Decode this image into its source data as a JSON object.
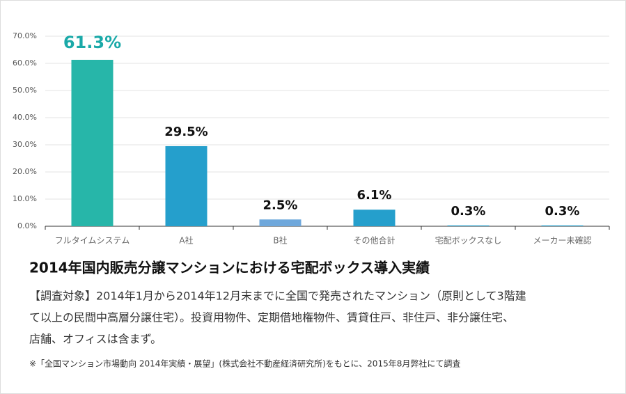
{
  "chart_data": {
    "type": "bar",
    "title": "2014年国内販売分譲マンションにおける宅配ボックス導入実績",
    "caption": [
      "【調査対象】2014年1月から2014年12月末までに全国で発売されたマンション（原則として3階建",
      "て以上の民間中高層分譲住宅）。投資用物件、定期借地権物件、賃貸住戸、非住戸、非分譲住宅、",
      "店舗、オフィスは含まず。"
    ],
    "source": "※「全国マンション市場動向 2014年実績・展望」(株式会社不動産経済研究所)をもとに、2015年8月弊社にて調査",
    "categories": [
      "フルタイムシステム",
      "A社",
      "B社",
      "その他合計",
      "宅配ボックスなし",
      "メーカー未確認"
    ],
    "values": [
      61.3,
      29.5,
      2.5,
      6.1,
      0.3,
      0.3
    ],
    "value_labels": [
      "61.3%",
      "29.5%",
      "2.5%",
      "6.1%",
      "0.3%",
      "0.3%"
    ],
    "colors": [
      "#27b6a9",
      "#259fcc",
      "#6fa8dc",
      "#259fcc",
      "#259fcc",
      "#259fcc"
    ],
    "value_label_colors": [
      "#1aa9a8",
      "#111111",
      "#111111",
      "#111111",
      "#111111",
      "#111111"
    ],
    "ylim": [
      0,
      70
    ],
    "yticks": [
      {
        "value": 0,
        "label": "0.0%"
      },
      {
        "value": 10,
        "label": "10.0%"
      },
      {
        "value": 20,
        "label": "20.0%"
      },
      {
        "value": 30,
        "label": "30.0%"
      },
      {
        "value": 40,
        "label": "40.0%"
      },
      {
        "value": 50,
        "label": "50.0%"
      },
      {
        "value": 60,
        "label": "60.0%"
      },
      {
        "value": 70,
        "label": "70.0%"
      }
    ],
    "grid": true
  }
}
